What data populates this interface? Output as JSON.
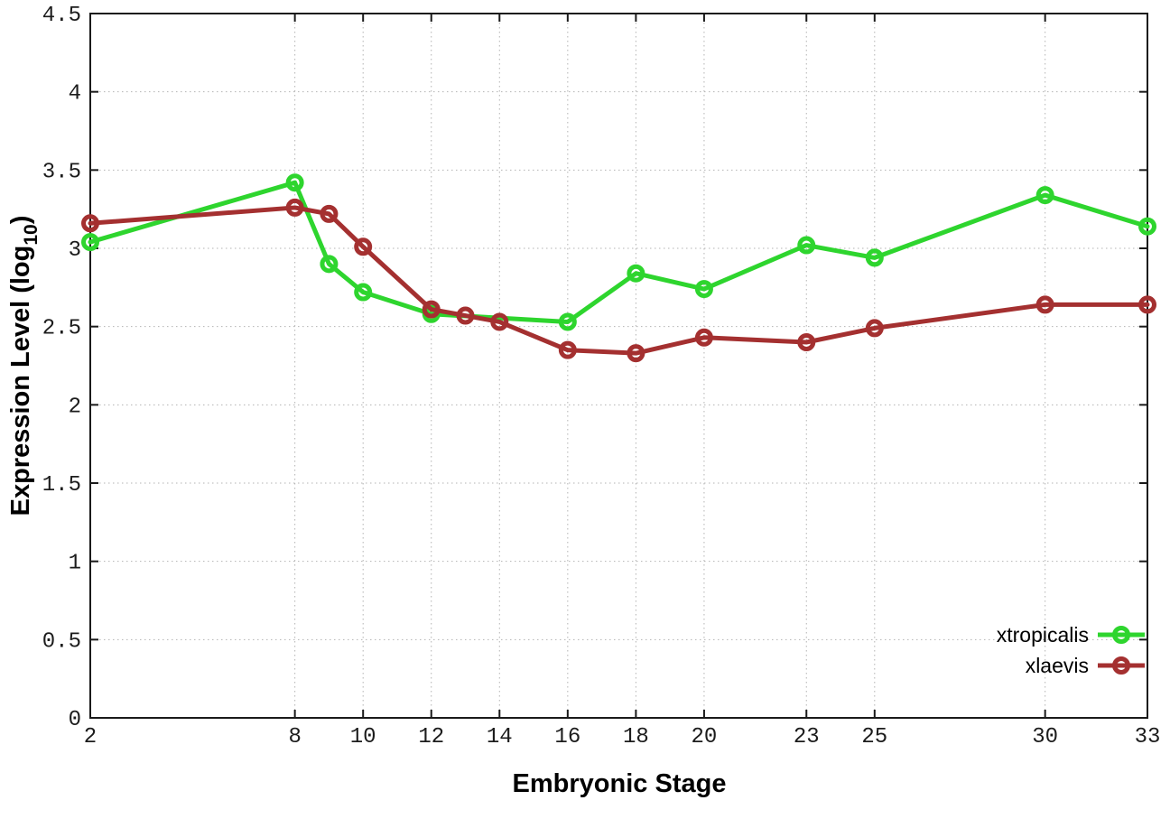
{
  "page": {
    "background": "#ffffff"
  },
  "chart_data": {
    "type": "line",
    "title": "",
    "xlabel": "Embryonic Stage",
    "ylabel": {
      "pre": "Expression Level (log",
      "sub": "10",
      "post": ")"
    },
    "xlim": [
      2,
      33
    ],
    "ylim": [
      0,
      4.5
    ],
    "xticks": [
      2,
      8,
      10,
      12,
      14,
      16,
      18,
      20,
      23,
      25,
      30,
      33
    ],
    "yticks": [
      0,
      0.5,
      1,
      1.5,
      2,
      2.5,
      3,
      3.5,
      4,
      4.5
    ],
    "grid": true,
    "legend_position": "inside-bottom-right",
    "series": [
      {
        "name": "xtropicalis",
        "color": "#2ed52e",
        "points": [
          [
            2,
            3.04
          ],
          [
            8,
            3.42
          ],
          [
            9,
            2.9
          ],
          [
            10,
            2.72
          ],
          [
            12,
            2.58
          ],
          [
            16,
            2.53
          ],
          [
            18,
            2.84
          ],
          [
            20,
            2.74
          ],
          [
            23,
            3.02
          ],
          [
            25,
            2.94
          ],
          [
            30,
            3.34
          ],
          [
            33,
            3.14
          ]
        ]
      },
      {
        "name": "xlaevis",
        "color": "#a43030",
        "points": [
          [
            2,
            3.16
          ],
          [
            8,
            3.26
          ],
          [
            9,
            3.22
          ],
          [
            10,
            3.01
          ],
          [
            12,
            2.61
          ],
          [
            13,
            2.57
          ],
          [
            14,
            2.53
          ],
          [
            16,
            2.35
          ],
          [
            18,
            2.33
          ],
          [
            20,
            2.43
          ],
          [
            23,
            2.4
          ],
          [
            25,
            2.49
          ],
          [
            30,
            2.64
          ],
          [
            33,
            2.64
          ]
        ]
      }
    ],
    "styles": {
      "grid_color": "#b3b3b3",
      "border_color": "#1a1a1a",
      "tick_label_color": "#1c1c1c",
      "line_width": 5,
      "marker_radius": 7.5,
      "marker_stroke": 5
    }
  }
}
